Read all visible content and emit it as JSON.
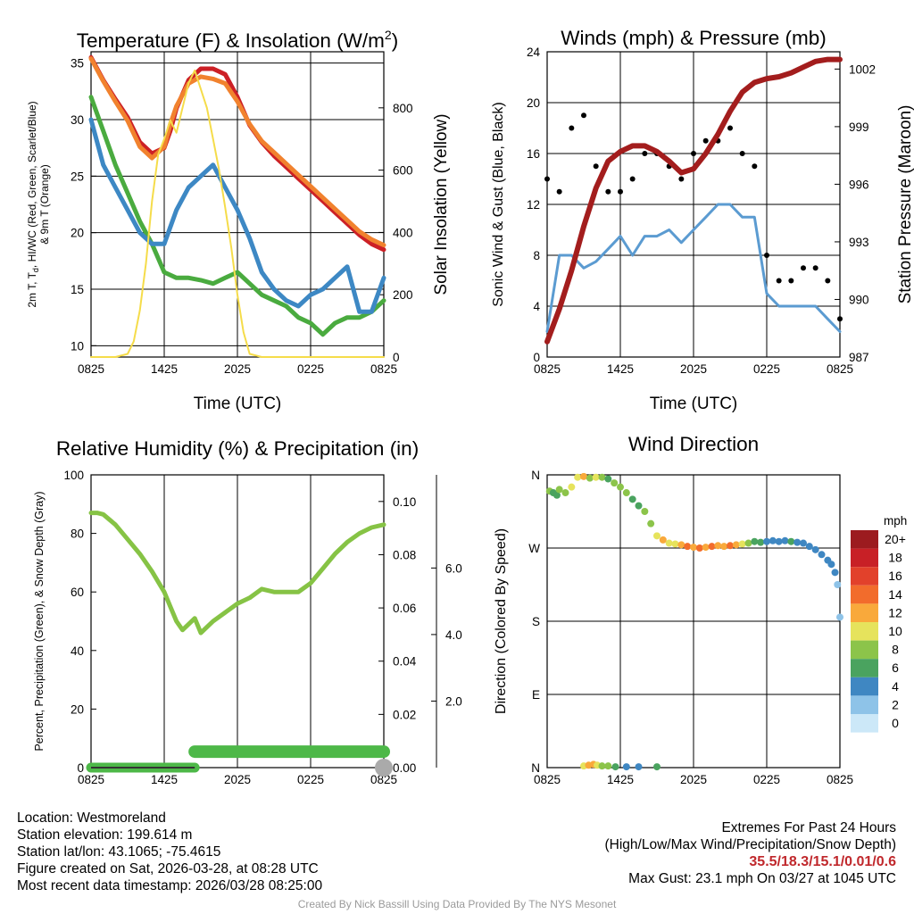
{
  "colors": {
    "temp": "#cc2026",
    "tmin_wc": "#3d88c4",
    "dewpoint": "#4aab3f",
    "t9m": "#f1822e",
    "insolation": "#f5dc4a",
    "wind_speed": "#5b9bd1",
    "gust": "#000000",
    "pressure": "#a31d1d",
    "humidity": "#86c345",
    "precip": "#4db848",
    "snow": "#aaaaaa"
  },
  "chart_data": [
    {
      "id": "temperature",
      "type": "line",
      "title": "Temperature (F) & Insolation (W/m",
      "title_sup": "2",
      "title_close": ")",
      "xlabel": "Time (UTC)",
      "ylabel_line1": "2m T, T",
      "ylabel_sub": "d",
      "ylabel_line1b": ", HI/WC (Red, Green, Scarlet/Blue)",
      "ylabel_line2": "& 9m T (Orange)",
      "ylabel_right": "Solar Insolation (Yellow)",
      "xticks": [
        "0825",
        "1425",
        "2025",
        "0225",
        "0825"
      ],
      "hours": [
        0,
        6,
        12,
        18,
        24
      ],
      "ylim": [
        9,
        36
      ],
      "yticks": [
        10,
        15,
        20,
        25,
        30,
        35
      ],
      "y2lim": [
        0,
        980
      ],
      "y2ticks": [
        0,
        200,
        400,
        600,
        800
      ],
      "series": [
        {
          "name": "2m T",
          "color_key": "temp",
          "axis": "left",
          "x": [
            0,
            1,
            2,
            3,
            4,
            5,
            6,
            6.5,
            7,
            8,
            9,
            10,
            11,
            12,
            13,
            14,
            15,
            16,
            17,
            18,
            19,
            20,
            21,
            22,
            23,
            24
          ],
          "y": [
            35.5,
            33.5,
            31.8,
            30.2,
            28,
            27,
            27.5,
            29,
            31,
            33.5,
            34.5,
            34.5,
            34,
            32,
            29.5,
            28,
            26.8,
            25.8,
            24.8,
            23.8,
            22.8,
            21.8,
            20.8,
            19.8,
            19,
            18.5
          ]
        },
        {
          "name": "9m T",
          "color_key": "t9m",
          "axis": "left",
          "x": [
            0,
            1,
            2,
            3,
            4,
            5,
            6,
            6.5,
            7,
            8,
            9,
            10,
            11,
            12,
            13,
            14,
            15,
            16,
            17,
            18,
            19,
            20,
            21,
            22,
            23,
            24
          ],
          "y": [
            35.4,
            33.4,
            31.6,
            29.9,
            27.6,
            26.6,
            27.6,
            29.6,
            31.2,
            33.2,
            33.8,
            33.6,
            33.2,
            31.6,
            29.6,
            28.1,
            27.1,
            26.1,
            25.1,
            24.1,
            23.1,
            22.1,
            21.1,
            20.1,
            19.4,
            18.9
          ]
        },
        {
          "name": "Dewpoint",
          "color_key": "dewpoint",
          "axis": "left",
          "x": [
            0,
            1,
            2,
            3,
            4,
            5,
            6,
            7,
            8,
            9,
            10,
            11,
            12,
            13,
            14,
            15,
            16,
            17,
            18,
            19,
            20,
            21,
            22,
            23,
            24
          ],
          "y": [
            32,
            29,
            26,
            23.5,
            21,
            19,
            16.5,
            16,
            16,
            15.8,
            15.5,
            16,
            16.5,
            15.5,
            14.5,
            14,
            13.5,
            12.5,
            12,
            11,
            12,
            12.5,
            12.5,
            13,
            14
          ]
        },
        {
          "name": "HI/WC",
          "color_key": "tmin_wc",
          "axis": "left",
          "x": [
            0,
            1,
            2,
            3,
            4,
            5,
            6,
            7,
            8,
            9,
            10,
            11,
            12,
            13,
            14,
            15,
            16,
            17,
            18,
            19,
            20,
            21,
            22,
            23,
            24
          ],
          "y": [
            30,
            26,
            24,
            22,
            20,
            19,
            19,
            22,
            24,
            25,
            26,
            24,
            22,
            19.5,
            16.5,
            15,
            14,
            13.5,
            14.5,
            15,
            16,
            17,
            13,
            13,
            16
          ]
        },
        {
          "name": "Solar Insolation",
          "color_key": "insolation",
          "axis": "right",
          "x": [
            0,
            1,
            2,
            3,
            3.5,
            4,
            4.5,
            5,
            5.5,
            6,
            6.5,
            7,
            7.5,
            8,
            8.5,
            9,
            9.5,
            10,
            10.5,
            11,
            11.5,
            12,
            12.5,
            13,
            14,
            15,
            16,
            17,
            18,
            19,
            20,
            21,
            22,
            23,
            24
          ],
          "y": [
            0,
            0,
            0,
            10,
            50,
            150,
            300,
            500,
            650,
            700,
            760,
            720,
            800,
            880,
            920,
            860,
            800,
            700,
            600,
            480,
            350,
            200,
            80,
            10,
            0,
            0,
            0,
            0,
            0,
            0,
            0,
            0,
            0,
            0,
            0
          ]
        }
      ]
    },
    {
      "id": "winds",
      "type": "line",
      "title": "Winds (mph) & Pressure (mb)",
      "xlabel": "Time (UTC)",
      "ylabel": "Sonic Wind & Gust (Blue, Black)",
      "ylabel_right": "Station Pressure (Maroon)",
      "xticks": [
        "0825",
        "1425",
        "2025",
        "0225",
        "0825"
      ],
      "hours": [
        0,
        6,
        12,
        18,
        24
      ],
      "ylim": [
        0,
        24
      ],
      "yticks": [
        0,
        4,
        8,
        12,
        16,
        20,
        24
      ],
      "y2lim": [
        987,
        1002.9
      ],
      "y2ticks": [
        987,
        990,
        993,
        996,
        999,
        1002
      ],
      "series": [
        {
          "name": "Sonic Wind",
          "color_key": "wind_speed",
          "axis": "left",
          "x": [
            0,
            1,
            2,
            3,
            4,
            5,
            6,
            7,
            8,
            9,
            10,
            11,
            12,
            13,
            14,
            15,
            16,
            17,
            18,
            19,
            20,
            21,
            22,
            23,
            24
          ],
          "y": [
            2,
            8,
            8,
            7,
            7.5,
            8.5,
            9.5,
            8,
            9.5,
            9.5,
            10,
            9,
            10,
            11,
            12,
            12,
            11,
            11,
            5,
            4,
            4,
            4,
            4,
            3,
            2
          ]
        },
        {
          "name": "Gust",
          "color_key": "gust",
          "axis": "left",
          "style": "dots",
          "x": [
            0,
            1,
            2,
            3,
            4,
            5,
            6,
            7,
            8,
            9,
            10,
            11,
            12,
            13,
            14,
            15,
            16,
            17,
            18,
            19,
            20,
            21,
            22,
            23,
            24
          ],
          "y": [
            14,
            13,
            18,
            19,
            15,
            13,
            13,
            14,
            16,
            16,
            15,
            14,
            16,
            17,
            17,
            18,
            16,
            15,
            8,
            6,
            6,
            7,
            7,
            6,
            3
          ]
        },
        {
          "name": "Station Pressure",
          "color_key": "pressure",
          "axis": "right",
          "x": [
            0,
            1,
            2,
            3,
            4,
            5,
            6,
            7,
            8,
            9,
            10,
            11,
            12,
            13,
            14,
            15,
            16,
            17,
            18,
            19,
            20,
            21,
            22,
            23,
            24
          ],
          "y": [
            987.8,
            989.5,
            991.5,
            993.8,
            995.8,
            997.2,
            997.7,
            998,
            998,
            997.7,
            997.2,
            996.6,
            996.8,
            997.6,
            998.6,
            999.8,
            1000.8,
            1001.3,
            1001.5,
            1001.6,
            1001.8,
            1002.1,
            1002.4,
            1002.5,
            1002.5
          ]
        }
      ]
    },
    {
      "id": "humidity",
      "type": "line",
      "title": "Relative Humidity (%) & Precipitation (in)",
      "ylabel": "Percent, Precipitation (Green), & Snow Depth (Gray)",
      "xticks": [
        "0825",
        "1425",
        "2025",
        "0225",
        "0825"
      ],
      "hours": [
        0,
        6,
        12,
        18,
        24
      ],
      "ylim": [
        0,
        100
      ],
      "yticks": [
        0,
        20,
        40,
        60,
        80,
        100
      ],
      "y2lim": [
        0,
        0.11
      ],
      "y2ticks": [
        "0.00",
        "0.02",
        "0.04",
        "0.06",
        "0.08",
        "0.10"
      ],
      "y3lim": [
        0,
        8.8
      ],
      "y3ticks": [
        "2.0",
        "4.0",
        "6.0"
      ],
      "series": [
        {
          "name": "Relative Humidity",
          "color_key": "humidity",
          "axis": "left",
          "x": [
            0,
            0.5,
            1,
            2,
            3,
            4,
            5,
            6,
            6.5,
            7,
            7.5,
            8,
            8.5,
            9,
            9.5,
            10,
            11,
            12,
            13,
            14,
            15,
            16,
            17,
            18,
            19,
            20,
            21,
            22,
            23,
            24
          ],
          "y": [
            87,
            87,
            86.5,
            83,
            78,
            73,
            67,
            60,
            55,
            50,
            47,
            49,
            51,
            46,
            48,
            50,
            53,
            56,
            58,
            61,
            60,
            60,
            60,
            63,
            68,
            73,
            77,
            80,
            82,
            83
          ]
        },
        {
          "name": "Precipitation",
          "color_key": "precip",
          "axis": "right",
          "x": [
            0,
            8.5,
            8.5,
            24
          ],
          "y": [
            0,
            0,
            0.006,
            0.006
          ]
        },
        {
          "name": "Snow Depth",
          "color_key": "snow",
          "axis": "right2",
          "x": [
            24
          ],
          "y": [
            0.0
          ]
        }
      ]
    },
    {
      "id": "direction",
      "type": "scatter",
      "title": "Wind Direction",
      "ylabel": "Direction (Colored By Speed)",
      "xticks": [
        "0825",
        "1425",
        "2025",
        "0225",
        "0825"
      ],
      "hours": [
        0,
        6,
        12,
        18,
        24
      ],
      "ylim": [
        0,
        360
      ],
      "ytick_values": [
        0,
        90,
        180,
        270,
        360
      ],
      "ytick_labels": [
        "N",
        "E",
        "S",
        "W",
        "N"
      ],
      "colorbar_title": "mph",
      "colorbar_labels": [
        "20+",
        "18",
        "16",
        "14",
        "12",
        "10",
        "8",
        "6",
        "4",
        "2",
        "0"
      ],
      "colorbar_colors": [
        "#9c1b1f",
        "#c82026",
        "#e2412b",
        "#f26c2c",
        "#f9a93b",
        "#e6e35c",
        "#8cc44a",
        "#4aa35f",
        "#3f87c2",
        "#8ec3e8",
        "#cce8f8"
      ],
      "points": [
        {
          "t": 0.2,
          "d": 340,
          "s": 7
        },
        {
          "t": 0.5,
          "d": 338,
          "s": 6
        },
        {
          "t": 0.8,
          "d": 335,
          "s": 5
        },
        {
          "t": 1,
          "d": 342,
          "s": 7
        },
        {
          "t": 1.5,
          "d": 338,
          "s": 8
        },
        {
          "t": 2,
          "d": 345,
          "s": 9
        },
        {
          "t": 2.5,
          "d": 357,
          "s": 10
        },
        {
          "t": 3,
          "d": 358,
          "s": 12
        },
        {
          "t": 3.5,
          "d": 356,
          "s": 8
        },
        {
          "t": 4,
          "d": 357,
          "s": 9
        },
        {
          "t": 4.5,
          "d": 357,
          "s": 7
        },
        {
          "t": 5,
          "d": 355,
          "s": 6
        },
        {
          "t": 5.5,
          "d": 350,
          "s": 7
        },
        {
          "t": 6,
          "d": 345,
          "s": 8
        },
        {
          "t": 6.5,
          "d": 338,
          "s": 7
        },
        {
          "t": 7,
          "d": 330,
          "s": 6
        },
        {
          "t": 7.5,
          "d": 322,
          "s": 5
        },
        {
          "t": 8,
          "d": 315,
          "s": 8
        },
        {
          "t": 8.5,
          "d": 300,
          "s": 7
        },
        {
          "t": 9,
          "d": 285,
          "s": 9
        },
        {
          "t": 9.5,
          "d": 280,
          "s": 11
        },
        {
          "t": 10,
          "d": 276,
          "s": 10
        },
        {
          "t": 10.5,
          "d": 275,
          "s": 9
        },
        {
          "t": 11,
          "d": 274,
          "s": 12
        },
        {
          "t": 11.5,
          "d": 272,
          "s": 13
        },
        {
          "t": 12,
          "d": 271,
          "s": 12
        },
        {
          "t": 12.5,
          "d": 270,
          "s": 14
        },
        {
          "t": 13,
          "d": 271,
          "s": 12
        },
        {
          "t": 13.5,
          "d": 272,
          "s": 13
        },
        {
          "t": 14,
          "d": 273,
          "s": 11
        },
        {
          "t": 14.5,
          "d": 272,
          "s": 12
        },
        {
          "t": 15,
          "d": 273,
          "s": 13
        },
        {
          "t": 15.5,
          "d": 274,
          "s": 11
        },
        {
          "t": 16,
          "d": 275,
          "s": 10
        },
        {
          "t": 16.5,
          "d": 276,
          "s": 8
        },
        {
          "t": 17,
          "d": 278,
          "s": 6
        },
        {
          "t": 17.5,
          "d": 277,
          "s": 5
        },
        {
          "t": 18,
          "d": 278,
          "s": 4
        },
        {
          "t": 18.5,
          "d": 279,
          "s": 4
        },
        {
          "t": 19,
          "d": 278,
          "s": 3
        },
        {
          "t": 19.5,
          "d": 279,
          "s": 4
        },
        {
          "t": 20,
          "d": 278,
          "s": 5
        },
        {
          "t": 20.5,
          "d": 277,
          "s": 4
        },
        {
          "t": 21,
          "d": 276,
          "s": 4
        },
        {
          "t": 21.5,
          "d": 272,
          "s": 4
        },
        {
          "t": 22,
          "d": 268,
          "s": 3
        },
        {
          "t": 22.5,
          "d": 262,
          "s": 4
        },
        {
          "t": 23,
          "d": 255,
          "s": 3
        },
        {
          "t": 23.3,
          "d": 250,
          "s": 4
        },
        {
          "t": 23.6,
          "d": 240,
          "s": 3
        },
        {
          "t": 23.8,
          "d": 225,
          "s": 2
        },
        {
          "t": 24,
          "d": 185,
          "s": 1
        },
        {
          "t": 3.0,
          "d": 2,
          "s": 10
        },
        {
          "t": 3.4,
          "d": 3,
          "s": 12
        },
        {
          "t": 3.8,
          "d": 4,
          "s": 11
        },
        {
          "t": 4.1,
          "d": 3,
          "s": 9
        },
        {
          "t": 4.5,
          "d": 2,
          "s": 8
        },
        {
          "t": 5,
          "d": 2,
          "s": 7
        },
        {
          "t": 5.6,
          "d": 1,
          "s": 6
        },
        {
          "t": 6.5,
          "d": 1,
          "s": 4
        },
        {
          "t": 7.5,
          "d": 1,
          "s": 3
        },
        {
          "t": 9,
          "d": 1,
          "s": 6
        }
      ]
    }
  ],
  "footer": {
    "location": "Location: Westmoreland",
    "elevation": "Station elevation: 199.614 m",
    "latlon": "Station lat/lon: 43.1065; -75.4615",
    "created": "Figure created on Sat, 2026-03-28, at 08:28 UTC",
    "recent": "Most recent data timestamp: 2026/03/28 08:25:00",
    "extremes_title": "Extremes For Past 24 Hours",
    "extremes_legend": "(High/Low/Max Wind/Precipitation/Snow Depth)",
    "extremes_values": "35.5/18.3/15.1/0.01/0.6",
    "max_gust": "Max Gust: 23.1 mph On 03/27 at 1045 UTC",
    "credit": "Created By Nick Bassill Using Data Provided By The NYS Mesonet"
  }
}
